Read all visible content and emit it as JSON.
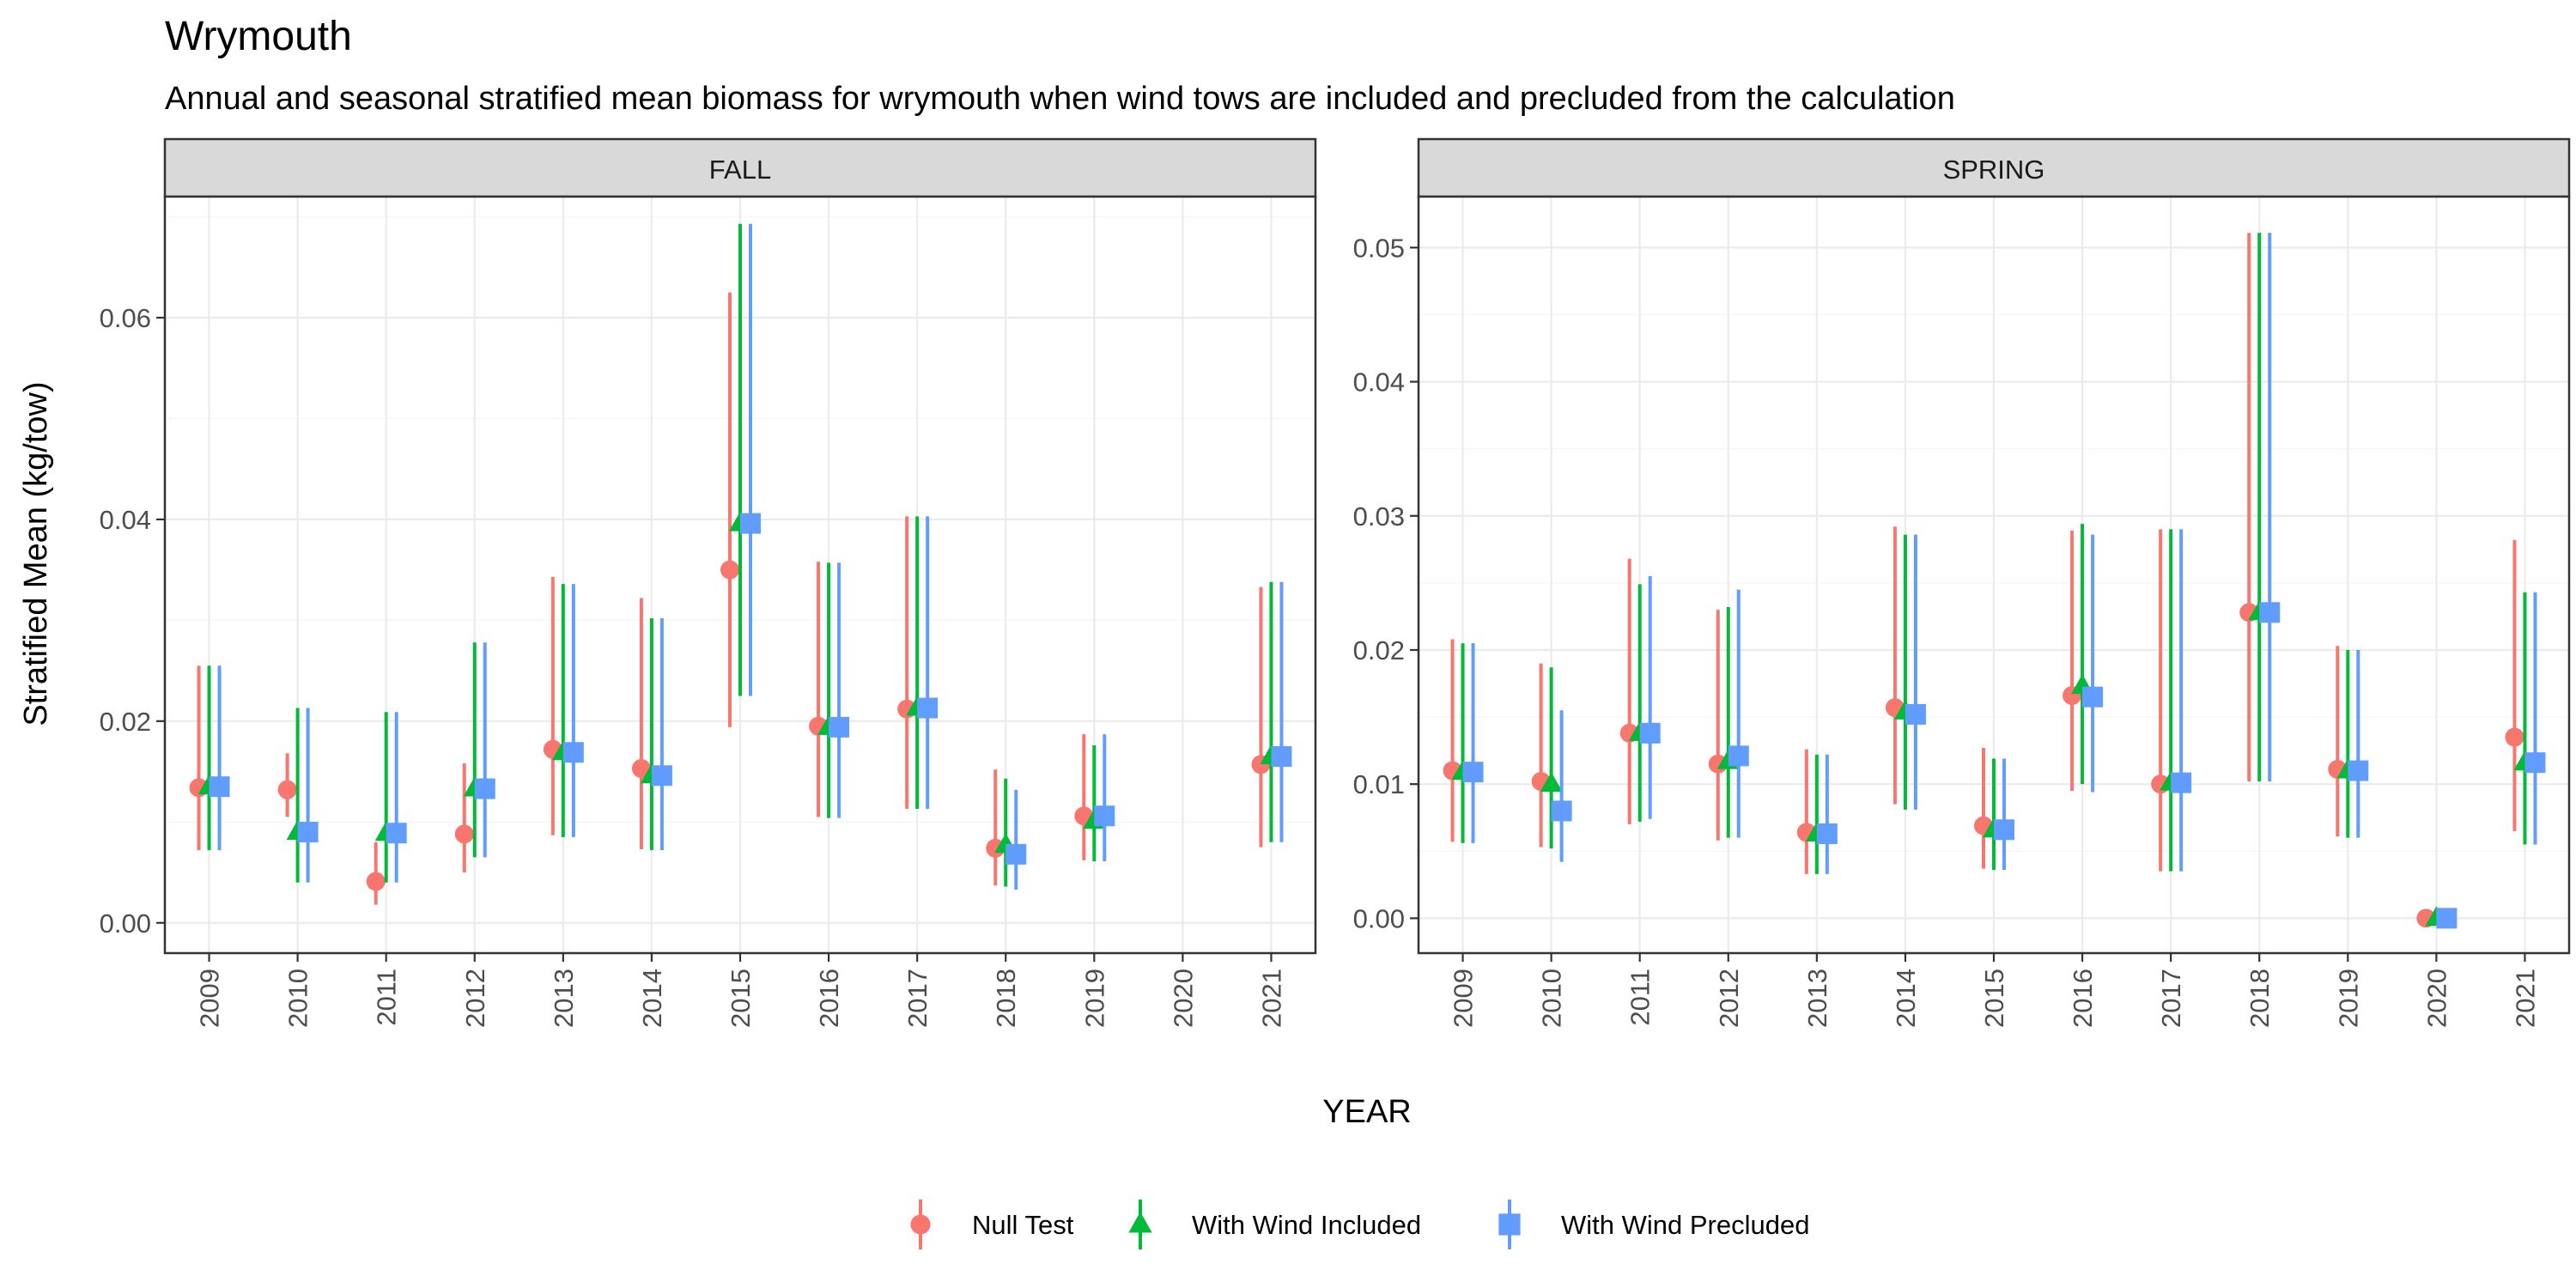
{
  "title": "Wrymouth",
  "subtitle": "Annual and seasonal stratified mean biomass for wrymouth when wind tows are included and precluded from the calculation",
  "colors": {
    "null_test": "#F8766D",
    "with_wind_included": "#00BA38",
    "with_wind_precluded": "#619CFF"
  },
  "chart_data": {
    "type": "scatter",
    "subtype": "point-range",
    "xlabel": "YEAR",
    "ylabel": "Stratified Mean (kg/tow)",
    "categories": [
      "2009",
      "2010",
      "2011",
      "2012",
      "2013",
      "2014",
      "2015",
      "2016",
      "2017",
      "2018",
      "2019",
      "2020",
      "2021"
    ],
    "legend": {
      "position": "bottom",
      "entries": [
        "Null Test",
        "With Wind Included",
        "With Wind Precluded"
      ]
    },
    "grid": true,
    "panels": [
      {
        "label": "FALL",
        "ylim": [
          -0.003,
          0.072
        ],
        "yticks": [
          0.0,
          0.02,
          0.04,
          0.06
        ],
        "ytick_labels": [
          "0.00",
          "0.02",
          "0.04",
          "0.06"
        ],
        "series": [
          {
            "name": "Null Test",
            "values": [
              0.0134,
              0.0132,
              0.0041,
              0.0088,
              0.0172,
              0.0153,
              0.035,
              0.0195,
              0.0212,
              0.0074,
              0.0106,
              null,
              0.0157
            ],
            "lower": [
              0.0072,
              0.0105,
              0.0018,
              0.005,
              0.0087,
              0.0073,
              0.0194,
              0.0105,
              0.0113,
              0.0037,
              0.0062,
              null,
              0.0075
            ],
            "upper": [
              0.0255,
              0.0168,
              0.008,
              0.0158,
              0.0343,
              0.0322,
              0.0625,
              0.0358,
              0.0403,
              0.0152,
              0.0187,
              null,
              0.0333
            ]
          },
          {
            "name": "With Wind Included",
            "values": [
              0.0135,
              0.009,
              0.0089,
              0.0133,
              0.0169,
              0.0146,
              0.0396,
              0.0194,
              0.0213,
              0.0077,
              0.0101,
              null,
              0.0165
            ],
            "lower": [
              0.0072,
              0.004,
              0.004,
              0.0065,
              0.0085,
              0.0072,
              0.0225,
              0.0104,
              0.0113,
              0.0036,
              0.0061,
              null,
              0.008
            ],
            "upper": [
              0.0255,
              0.0213,
              0.0209,
              0.0278,
              0.0336,
              0.0302,
              0.0693,
              0.0357,
              0.0403,
              0.0143,
              0.0176,
              null,
              0.0338
            ]
          },
          {
            "name": "With Wind Precluded",
            "values": [
              0.0135,
              0.009,
              0.0089,
              0.0133,
              0.0169,
              0.0146,
              0.0396,
              0.0194,
              0.0213,
              0.0068,
              0.0106,
              null,
              0.0165
            ],
            "lower": [
              0.0072,
              0.004,
              0.004,
              0.0065,
              0.0085,
              0.0072,
              0.0225,
              0.0104,
              0.0113,
              0.0033,
              0.0061,
              null,
              0.008
            ],
            "upper": [
              0.0255,
              0.0213,
              0.0209,
              0.0278,
              0.0336,
              0.0302,
              0.0693,
              0.0357,
              0.0403,
              0.0132,
              0.0187,
              null,
              0.0338
            ]
          }
        ]
      },
      {
        "label": "SPRING",
        "ylim": [
          -0.0026,
          0.0538
        ],
        "yticks": [
          0.0,
          0.01,
          0.02,
          0.03,
          0.04,
          0.05
        ],
        "ytick_labels": [
          "0.00",
          "0.01",
          "0.02",
          "0.03",
          "0.04",
          "0.05"
        ],
        "series": [
          {
            "name": "Null Test",
            "values": [
              0.011,
              0.0102,
              0.0138,
              0.0115,
              0.0064,
              0.0157,
              0.0069,
              0.0166,
              0.01,
              0.0228,
              0.0111,
              0.0,
              0.0135
            ],
            "lower": [
              0.0057,
              0.0053,
              0.007,
              0.0058,
              0.0033,
              0.0085,
              0.0037,
              0.0095,
              0.0035,
              0.0102,
              0.0061,
              0.0,
              0.0065
            ],
            "upper": [
              0.0208,
              0.019,
              0.0268,
              0.023,
              0.0126,
              0.0292,
              0.0127,
              0.0289,
              0.029,
              0.0511,
              0.0203,
              0.0,
              0.0282
            ]
          },
          {
            "name": "With Wind Included",
            "values": [
              0.0109,
              0.01,
              0.0138,
              0.0117,
              0.0063,
              0.0154,
              0.0066,
              0.0173,
              0.0101,
              0.0228,
              0.011,
              0.0,
              0.0116
            ],
            "lower": [
              0.0056,
              0.0052,
              0.0072,
              0.006,
              0.0033,
              0.0081,
              0.0036,
              0.01,
              0.0035,
              0.0102,
              0.006,
              0.0,
              0.0055
            ],
            "upper": [
              0.0205,
              0.0187,
              0.0249,
              0.0232,
              0.0122,
              0.0286,
              0.0119,
              0.0294,
              0.029,
              0.0511,
              0.02,
              0.0,
              0.0243
            ]
          },
          {
            "name": "With Wind Precluded",
            "values": [
              0.0109,
              0.008,
              0.0138,
              0.0121,
              0.0063,
              0.0152,
              0.0066,
              0.0165,
              0.0101,
              0.0228,
              0.011,
              0.0,
              0.0116
            ],
            "lower": [
              0.0056,
              0.0042,
              0.0074,
              0.006,
              0.0033,
              0.0081,
              0.0036,
              0.0094,
              0.0035,
              0.0102,
              0.006,
              0.0,
              0.0055
            ],
            "upper": [
              0.0205,
              0.0155,
              0.0255,
              0.0245,
              0.0122,
              0.0286,
              0.0119,
              0.0286,
              0.029,
              0.0511,
              0.02,
              0.0,
              0.0243
            ]
          }
        ]
      }
    ]
  }
}
